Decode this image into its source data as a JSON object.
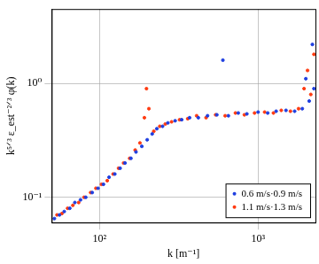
{
  "chart_data": {
    "type": "scatter",
    "x_label": "k [m⁻¹]",
    "y_label": "k⁵ᐟ³ ε_est⁻²ᐟ³ φ(k)",
    "log": true,
    "grid": true,
    "legend": "lower right",
    "marker": "circle",
    "xlim": [
      50,
      2300
    ],
    "ylim": [
      0.06,
      4.5
    ],
    "xticks": [
      {
        "value": 100,
        "label": "10²"
      },
      {
        "value": 1000,
        "label": "10³"
      }
    ],
    "yticks": [
      {
        "value": 0.1,
        "label": "10⁻¹"
      },
      {
        "value": 1,
        "label": "10⁰"
      }
    ],
    "series": [
      {
        "name": "0.6 m/s·0.9 m/s",
        "color": "#1f3fe0",
        "x": [
          52,
          56,
          60,
          65,
          70,
          76,
          82,
          90,
          98,
          106,
          115,
          125,
          135,
          145,
          158,
          170,
          185,
          200,
          215,
          230,
          250,
          270,
          300,
          330,
          370,
          420,
          480,
          550,
          600,
          650,
          750,
          850,
          1000,
          1150,
          1300,
          1500,
          1700,
          1900,
          2000,
          2100,
          2200,
          2250
        ],
        "values": [
          0.065,
          0.07,
          0.075,
          0.08,
          0.09,
          0.095,
          0.1,
          0.11,
          0.12,
          0.13,
          0.15,
          0.16,
          0.18,
          0.2,
          0.22,
          0.25,
          0.28,
          0.32,
          0.36,
          0.4,
          0.42,
          0.45,
          0.47,
          0.48,
          0.5,
          0.5,
          0.52,
          0.53,
          1.6,
          0.52,
          0.55,
          0.54,
          0.56,
          0.55,
          0.57,
          0.58,
          0.57,
          0.6,
          1.1,
          0.7,
          2.2,
          0.9
        ]
      },
      {
        "name": "1.1 m/s·1.3 m/s",
        "color": "#ff3a10",
        "x": [
          54,
          58,
          63,
          68,
          74,
          80,
          88,
          95,
          103,
          112,
          122,
          132,
          142,
          155,
          168,
          180,
          192,
          198,
          205,
          220,
          240,
          260,
          285,
          320,
          360,
          410,
          470,
          540,
          620,
          720,
          820,
          950,
          1100,
          1250,
          1400,
          1600,
          1800,
          1950,
          2050,
          2150,
          2250
        ],
        "values": [
          0.07,
          0.072,
          0.08,
          0.085,
          0.09,
          0.1,
          0.11,
          0.12,
          0.13,
          0.14,
          0.16,
          0.18,
          0.2,
          0.22,
          0.26,
          0.3,
          0.5,
          0.9,
          0.6,
          0.38,
          0.42,
          0.44,
          0.46,
          0.48,
          0.49,
          0.52,
          0.5,
          0.53,
          0.52,
          0.55,
          0.53,
          0.55,
          0.56,
          0.55,
          0.58,
          0.57,
          0.6,
          0.9,
          1.3,
          0.8,
          1.8
        ]
      }
    ]
  }
}
